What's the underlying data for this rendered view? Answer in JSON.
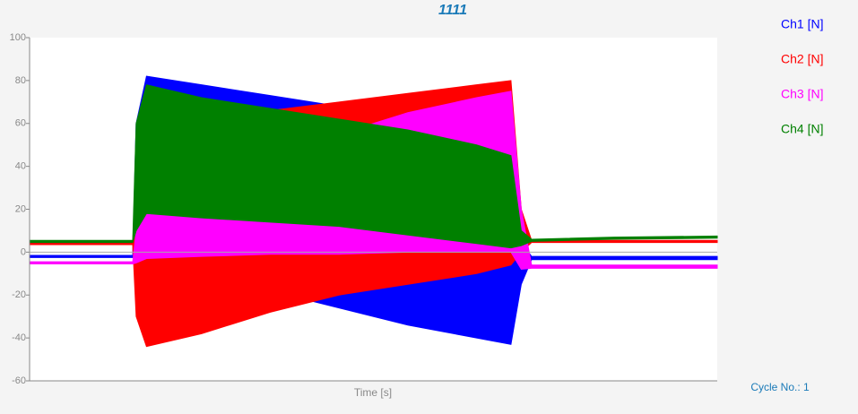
{
  "chart_data": {
    "type": "band",
    "title": "1111",
    "x_label": "Time [s]",
    "footer": "Cycle No.: 1",
    "xlim": [
      0,
      20
    ],
    "ylim": [
      -60,
      100
    ],
    "yticks": [
      -60,
      -40,
      -20,
      0,
      20,
      40,
      60,
      80,
      100
    ],
    "series": [
      {
        "name": "Ch1 [N]",
        "color": "#0000ff",
        "x": [
          0,
          3.0,
          3.1,
          3.4,
          5,
          7,
          9,
          11,
          13,
          14,
          14.3,
          14.6,
          17,
          20
        ],
        "max": [
          -1.5,
          -1.5,
          60,
          82,
          78,
          73,
          68,
          60,
          50,
          40,
          5,
          -2,
          -2,
          -2
        ],
        "min": [
          -2.5,
          -2.5,
          -5,
          -8,
          -12,
          -18,
          -26,
          -34,
          -40,
          -43,
          -15,
          -3.5,
          -3.5,
          -3.5
        ]
      },
      {
        "name": "Ch2 [N]",
        "color": "#ff0000",
        "x": [
          0,
          3.0,
          3.1,
          3.4,
          5,
          7,
          9,
          11,
          13,
          14,
          14.3,
          14.6,
          17,
          20
        ],
        "max": [
          4.5,
          4.5,
          40,
          55,
          60,
          66,
          70,
          74,
          78,
          80,
          20,
          5.5,
          5.5,
          5.5
        ],
        "min": [
          3.5,
          3.5,
          -30,
          -44,
          -38,
          -28,
          -20,
          -15,
          -10,
          -6,
          0,
          4.5,
          4.5,
          4.5
        ]
      },
      {
        "name": "Ch3 [N]",
        "color": "#ff00ff",
        "x": [
          0,
          3.0,
          3.1,
          3.4,
          5,
          7,
          9,
          11,
          13,
          14,
          14.3,
          14.6,
          17,
          20
        ],
        "max": [
          -4.5,
          -4.5,
          10,
          20,
          30,
          45,
          55,
          65,
          72,
          75,
          20,
          -6,
          -6,
          -6
        ],
        "min": [
          -5.5,
          -5.5,
          -5,
          -3,
          -2,
          -1,
          -1,
          0,
          0,
          0,
          -8,
          -7.5,
          -7.5,
          -7.5
        ]
      },
      {
        "name": "Ch4 [N]",
        "color": "#008000",
        "x": [
          0,
          3.0,
          3.1,
          3.4,
          5,
          7,
          9,
          11,
          13,
          14,
          14.3,
          14.6,
          17,
          20
        ],
        "max": [
          5.5,
          5.5,
          60,
          78,
          72,
          67,
          62,
          57,
          50,
          45,
          10,
          6,
          7,
          7.5
        ],
        "min": [
          4.5,
          4.5,
          10,
          18,
          16,
          14,
          12,
          8,
          4,
          2,
          3,
          5,
          6,
          6.5
        ]
      }
    ]
  }
}
